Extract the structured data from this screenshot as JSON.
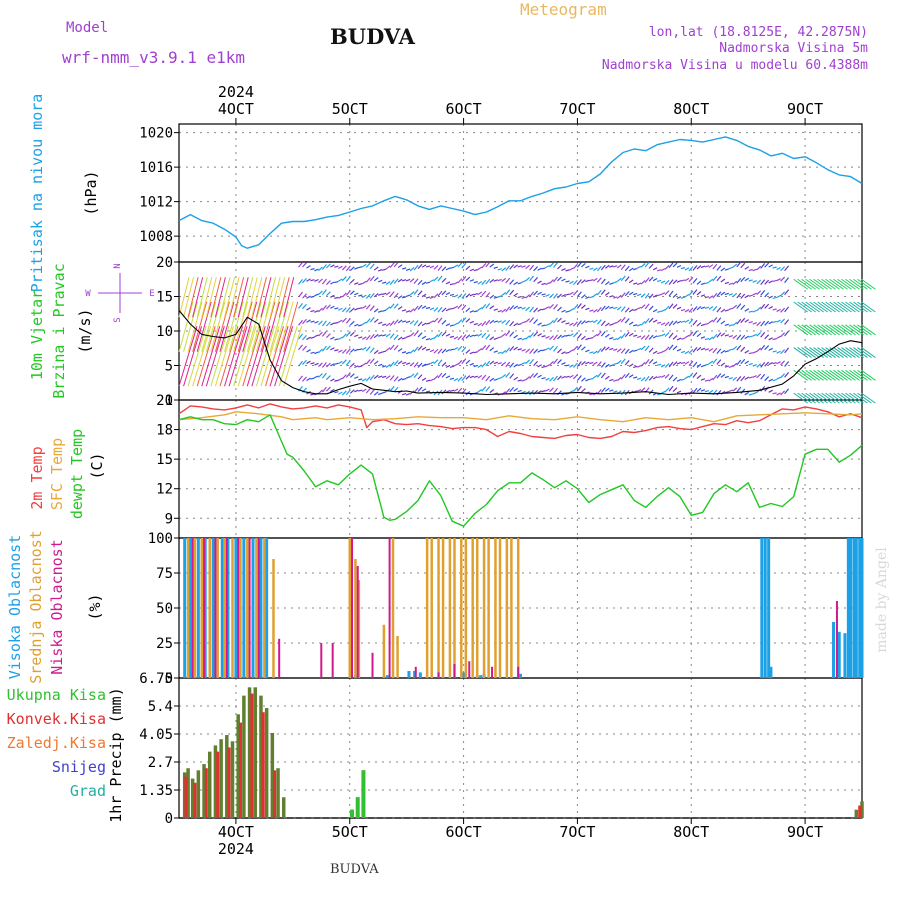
{
  "header": {
    "model_label": "Model",
    "model_name": "wrf-nmm_v3.9.1 e1km",
    "station": "BUDVA",
    "product": "Meteogram",
    "lonlat": "lon,lat (18.8125E, 42.2875N)",
    "elevation": "Nadmorska Visina 5m",
    "model_elevation": "Nadmorska Visina u modelu 60.4388m",
    "footer_station": "BUDVA",
    "watermark": "made by Angel"
  },
  "colors": {
    "pressure": "#1ca0e6",
    "temp2m": "#f04040",
    "sfc_temp": "#e8a838",
    "dewpt": "#22c822",
    "high_cloud": "#1ca0e6",
    "mid_cloud": "#e0a030",
    "low_cloud": "#d01890",
    "total_precip": "#30c030",
    "conv_precip": "#e03030",
    "snow": "#4040d0",
    "graupel": "#20b0a0",
    "header_purple": "#a040d0",
    "header_orange": "#e8b860"
  },
  "chart_data": [
    {
      "type": "line",
      "panel": "pressure",
      "ylabel": [
        "Pritisak na nivou mora",
        "(hPa)"
      ],
      "ylim": [
        1005,
        1021
      ],
      "yticks": [
        1008,
        1012,
        1016,
        1020
      ],
      "x_unit": "day of month (October 2024)",
      "xlim": [
        3.5,
        9.5
      ],
      "x_ticks": [
        {
          "x": 4,
          "top": "4OCT",
          "top_year": "2024",
          "bottom": "4OCT",
          "bottom_year": "2024"
        },
        {
          "x": 5,
          "top": "5OCT",
          "bottom": "5OCT"
        },
        {
          "x": 6,
          "top": "6OCT",
          "bottom": "6OCT"
        },
        {
          "x": 7,
          "top": "7OCT",
          "bottom": "7OCT"
        },
        {
          "x": 8,
          "top": "8OCT",
          "bottom": "8OCT"
        },
        {
          "x": 9,
          "top": "9OCT",
          "bottom": "9OCT"
        }
      ],
      "series": [
        {
          "x": [
            3.5,
            3.6,
            3.7,
            3.8,
            3.9,
            4.0,
            4.05,
            4.1,
            4.2,
            4.3,
            4.4,
            4.5,
            4.6,
            4.7,
            4.8,
            4.9,
            5.0,
            5.1,
            5.2,
            5.3,
            5.4,
            5.5,
            5.6,
            5.7,
            5.8,
            5.9,
            6.0,
            6.1,
            6.2,
            6.3,
            6.4,
            6.5,
            6.6,
            6.7,
            6.8,
            6.9,
            7.0,
            7.1,
            7.2,
            7.3,
            7.4,
            7.5,
            7.6,
            7.7,
            7.8,
            7.9,
            8.0,
            8.1,
            8.2,
            8.3,
            8.4,
            8.5,
            8.6,
            8.7,
            8.8,
            8.9,
            9.0,
            9.1,
            9.2,
            9.3,
            9.4,
            9.5
          ],
          "y": [
            1009.8,
            1010.5,
            1009.8,
            1009.5,
            1008.8,
            1007.9,
            1006.9,
            1006.6,
            1007.0,
            1008.3,
            1009.5,
            1009.7,
            1009.7,
            1009.9,
            1010.2,
            1010.4,
            1010.8,
            1011.2,
            1011.5,
            1012.1,
            1012.6,
            1012.2,
            1011.5,
            1011.1,
            1011.5,
            1011.2,
            1010.9,
            1010.5,
            1010.8,
            1011.4,
            1012.1,
            1012.1,
            1012.6,
            1013.0,
            1013.5,
            1013.7,
            1014.1,
            1014.3,
            1015.2,
            1016.6,
            1017.7,
            1018.1,
            1017.9,
            1018.6,
            1018.9,
            1019.2,
            1019.1,
            1018.9,
            1019.2,
            1019.5,
            1019.1,
            1018.4,
            1018.0,
            1017.3,
            1017.6,
            1017.0,
            1017.2,
            1016.5,
            1015.7,
            1015.1,
            1014.9,
            1014.1
          ]
        }
      ]
    },
    {
      "type": "line",
      "panel": "wind",
      "ylabel": [
        "10m Vjetar",
        "Brzina i Pravac",
        "(m/s)"
      ],
      "direction_legend": [
        "N",
        "E",
        "S",
        "W"
      ],
      "ylim": [
        0,
        20
      ],
      "yticks": [
        0,
        5,
        10,
        15,
        20
      ],
      "xlim": [
        3.5,
        9.5
      ],
      "series": [
        {
          "x": [
            3.5,
            3.6,
            3.7,
            3.8,
            3.9,
            4.0,
            4.1,
            4.2,
            4.3,
            4.4,
            4.5,
            4.6,
            4.7,
            4.8,
            4.9,
            5.0,
            5.1,
            5.2,
            5.3,
            5.4,
            5.5,
            5.6,
            5.8,
            6.0,
            6.2,
            6.4,
            6.6,
            6.8,
            7.0,
            7.2,
            7.4,
            7.6,
            7.8,
            8.0,
            8.2,
            8.4,
            8.6,
            8.8,
            8.9,
            9.0,
            9.1,
            9.2,
            9.3,
            9.4,
            9.5
          ],
          "y": [
            13,
            11,
            9.5,
            9.2,
            9.0,
            9.5,
            12,
            11,
            5.8,
            2.8,
            1.8,
            1.2,
            0.9,
            0.9,
            1.5,
            2.0,
            2.4,
            1.6,
            1.4,
            1.2,
            1.3,
            1.0,
            1.1,
            1.0,
            0.8,
            0.9,
            1.0,
            0.9,
            1.1,
            0.9,
            1.0,
            1.2,
            0.8,
            1.0,
            0.9,
            1.1,
            1.4,
            2.3,
            3.5,
            5.2,
            6.0,
            7.0,
            8.1,
            8.6,
            8.3
          ]
        }
      ]
    },
    {
      "type": "line",
      "panel": "temperature",
      "ylabel": [
        "2m Temp",
        "SFC Temp",
        "dewpt Temp",
        "(C)"
      ],
      "ylim": [
        7,
        21
      ],
      "yticks": [
        9,
        12,
        15,
        18,
        21
      ],
      "xlim": [
        3.5,
        9.5
      ],
      "series": [
        {
          "name": "2m Temp",
          "x": [
            3.5,
            3.6,
            3.7,
            3.8,
            3.9,
            4.0,
            4.1,
            4.2,
            4.3,
            4.4,
            4.5,
            4.6,
            4.7,
            4.8,
            4.9,
            5.0,
            5.1,
            5.15,
            5.2,
            5.3,
            5.4,
            5.5,
            5.6,
            5.7,
            5.8,
            5.9,
            6.0,
            6.1,
            6.2,
            6.3,
            6.4,
            6.5,
            6.6,
            6.7,
            6.8,
            6.9,
            7.0,
            7.1,
            7.2,
            7.3,
            7.4,
            7.5,
            7.6,
            7.7,
            7.8,
            7.9,
            8.0,
            8.1,
            8.2,
            8.3,
            8.4,
            8.5,
            8.6,
            8.7,
            8.8,
            8.9,
            9.0,
            9.1,
            9.2,
            9.3,
            9.4,
            9.5
          ],
          "y": [
            19.6,
            20.4,
            20.3,
            20.1,
            20.0,
            20.2,
            20.5,
            20.2,
            20.6,
            20.3,
            20.1,
            20.2,
            20.4,
            20.2,
            20.5,
            20.3,
            20.0,
            18.2,
            18.8,
            19.0,
            18.6,
            18.5,
            18.6,
            18.4,
            18.3,
            18.1,
            18.2,
            18.2,
            18.0,
            17.3,
            17.8,
            17.6,
            17.3,
            17.2,
            17.1,
            17.4,
            17.5,
            17.2,
            17.1,
            17.3,
            17.8,
            17.7,
            17.9,
            18.2,
            18.3,
            18.1,
            18.0,
            18.3,
            18.6,
            18.5,
            18.9,
            18.7,
            18.9,
            19.5,
            20.1,
            20.0,
            20.3,
            20.1,
            19.8,
            19.3,
            19.6,
            19.2
          ]
        },
        {
          "name": "SFC Temp",
          "x": [
            3.5,
            3.7,
            3.9,
            4.0,
            4.2,
            4.4,
            4.5,
            4.6,
            4.7,
            4.8,
            4.9,
            5.0,
            5.2,
            5.4,
            5.6,
            5.8,
            6.0,
            6.2,
            6.4,
            6.6,
            6.8,
            7.0,
            7.2,
            7.4,
            7.6,
            7.8,
            8.0,
            8.2,
            8.4,
            8.6,
            8.8,
            9.0,
            9.2,
            9.4,
            9.5
          ],
          "y": [
            19.0,
            19.2,
            19.5,
            19.8,
            19.6,
            19.3,
            19.0,
            19.1,
            19.2,
            19.0,
            19.1,
            19.2,
            19.0,
            19.1,
            19.3,
            19.2,
            19.2,
            19.0,
            19.4,
            19.1,
            19.0,
            19.3,
            19.0,
            18.8,
            19.2,
            19.0,
            19.2,
            18.8,
            19.4,
            19.5,
            19.6,
            19.7,
            19.6,
            19.5,
            19.6
          ]
        },
        {
          "name": "dewpt Temp",
          "x": [
            3.5,
            3.6,
            3.7,
            3.8,
            3.9,
            4.0,
            4.1,
            4.2,
            4.3,
            4.4,
            4.45,
            4.5,
            4.6,
            4.7,
            4.8,
            4.9,
            5.0,
            5.1,
            5.2,
            5.3,
            5.35,
            5.4,
            5.5,
            5.6,
            5.7,
            5.8,
            5.9,
            6.0,
            6.1,
            6.2,
            6.3,
            6.4,
            6.5,
            6.6,
            6.7,
            6.8,
            6.9,
            7.0,
            7.1,
            7.2,
            7.3,
            7.4,
            7.5,
            7.6,
            7.7,
            7.8,
            7.9,
            8.0,
            8.1,
            8.2,
            8.3,
            8.4,
            8.5,
            8.6,
            8.7,
            8.8,
            8.9,
            9.0,
            9.1,
            9.2,
            9.3,
            9.4,
            9.5
          ],
          "y": [
            19.0,
            19.3,
            19.0,
            19.0,
            18.6,
            18.5,
            19.0,
            18.8,
            19.5,
            16.8,
            15.5,
            15.2,
            13.8,
            12.2,
            12.8,
            12.4,
            13.5,
            14.4,
            13.5,
            9.1,
            8.8,
            8.9,
            9.7,
            10.8,
            12.8,
            11.3,
            8.7,
            8.2,
            9.5,
            10.4,
            11.8,
            12.6,
            12.6,
            13.6,
            12.9,
            12.1,
            12.8,
            12.0,
            10.6,
            11.4,
            11.9,
            12.4,
            10.8,
            10.1,
            11.2,
            12.1,
            11.2,
            9.3,
            9.6,
            11.5,
            12.4,
            11.7,
            12.6,
            10.1,
            10.5,
            10.2,
            11.2,
            15.5,
            16.0,
            16.0,
            14.7,
            15.4,
            16.4
          ]
        }
      ]
    },
    {
      "type": "bar",
      "panel": "clouds",
      "ylabel": [
        "Visoka Oblacnost",
        "Srednja Oblacnost",
        "Niska Oblacnost",
        "(%)"
      ],
      "ylim": [
        0,
        100
      ],
      "yticks": [
        0,
        25,
        50,
        75,
        100
      ],
      "xlim": [
        3.5,
        9.5
      ],
      "series": [
        {
          "name": "Visoka Oblacnost",
          "x": [
            3.55,
            3.6,
            3.67,
            3.73,
            3.8,
            3.88,
            3.93,
            4.0,
            4.07,
            4.15,
            4.22,
            4.27,
            5.05,
            5.33,
            5.52,
            5.57,
            5.62,
            6.0,
            6.12,
            6.15,
            6.18,
            6.5,
            8.62,
            8.65,
            8.68,
            8.7,
            9.25,
            9.3,
            9.35,
            9.38,
            9.4,
            9.43,
            9.45,
            9.48,
            9.5
          ],
          "y": [
            100,
            100,
            100,
            100,
            100,
            100,
            100,
            100,
            100,
            100,
            100,
            100,
            2,
            2,
            5,
            5,
            4,
            4,
            2,
            2,
            3,
            3,
            100,
            100,
            100,
            8,
            40,
            33,
            32,
            100,
            100,
            100,
            100,
            100,
            100
          ]
        },
        {
          "name": "Srednja Oblacnost",
          "x": [
            3.58,
            3.64,
            3.7,
            3.77,
            3.84,
            3.9,
            3.97,
            4.04,
            4.1,
            4.18,
            4.25,
            4.33,
            5.0,
            5.05,
            5.08,
            5.3,
            5.38,
            5.42,
            5.68,
            5.72,
            5.78,
            5.82,
            5.88,
            5.92,
            5.98,
            6.02,
            6.08,
            6.12,
            6.18,
            6.22,
            6.28,
            6.32,
            6.38,
            6.42,
            6.48
          ],
          "y": [
            100,
            100,
            100,
            100,
            100,
            100,
            100,
            100,
            100,
            100,
            100,
            85,
            100,
            85,
            70,
            38,
            100,
            30,
            100,
            100,
            100,
            100,
            100,
            100,
            100,
            100,
            100,
            100,
            100,
            100,
            100,
            100,
            100,
            100,
            100
          ]
        },
        {
          "name": "Niska Oblacnost",
          "x": [
            3.62,
            3.72,
            3.82,
            3.92,
            4.02,
            4.12,
            4.2,
            4.38,
            4.75,
            4.85,
            5.02,
            5.07,
            5.2,
            5.35,
            5.58,
            5.78,
            5.92,
            6.05,
            6.25,
            6.48,
            9.28
          ],
          "y": [
            100,
            100,
            100,
            100,
            100,
            100,
            100,
            28,
            25,
            25,
            100,
            80,
            18,
            100,
            8,
            4,
            10,
            12,
            8,
            8,
            55
          ]
        }
      ]
    },
    {
      "type": "bar",
      "panel": "precipitation",
      "ylabel": [
        "1hr Precip (mm)"
      ],
      "legend": [
        "Ukupna Kisa",
        "Konvek.Kisa",
        "Zaledj.Kisa",
        "Snijeg",
        "Grad"
      ],
      "ylim": [
        0,
        6.75
      ],
      "yticks": [
        0,
        1.35,
        2.7,
        4.05,
        5.4,
        6.75
      ],
      "xlim": [
        3.5,
        9.5
      ],
      "series": [
        {
          "name": "Ukupna Kisa",
          "x": [
            3.55,
            3.58,
            3.62,
            3.67,
            3.72,
            3.77,
            3.82,
            3.87,
            3.92,
            3.97,
            4.02,
            4.07,
            4.12,
            4.17,
            4.22,
            4.27,
            4.32,
            4.37,
            4.42,
            5.02,
            5.07,
            5.12,
            9.45,
            9.5
          ],
          "y": [
            2.2,
            2.4,
            1.9,
            2.3,
            2.6,
            3.2,
            3.5,
            3.8,
            4.0,
            3.7,
            5.0,
            5.9,
            6.3,
            6.3,
            5.9,
            5.3,
            4.1,
            2.4,
            1.0,
            0.4,
            1.0,
            2.3,
            0.4,
            0.8
          ]
        },
        {
          "name": "Konvek.Kisa",
          "x": [
            3.56,
            3.64,
            3.74,
            3.84,
            3.94,
            4.04,
            4.14,
            4.24,
            4.34,
            9.48
          ],
          "y": [
            2.0,
            1.7,
            2.4,
            3.2,
            3.4,
            4.6,
            6.0,
            5.1,
            2.3,
            0.6
          ]
        }
      ]
    }
  ]
}
